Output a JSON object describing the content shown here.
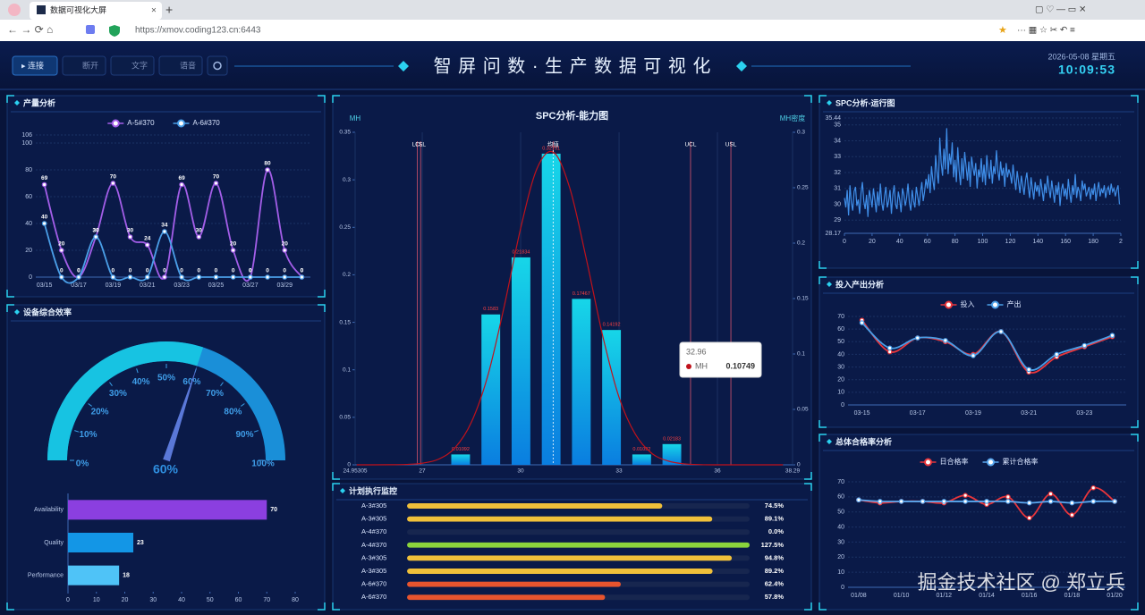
{
  "browser": {
    "tab_title": "数据可视化大屏",
    "url": "https://xmov.coding123.cn:6443"
  },
  "header": {
    "buttons": [
      "连接",
      "断开",
      "文字",
      "语音"
    ],
    "title": "智 屏 问 数 · 生 产 数 据 可 视 化",
    "date": "2026-05-08 星期五",
    "time": "10:09:53"
  },
  "watermark": "掘金技术社区 @ 郑立兵",
  "chart_data": [
    {
      "type": "line",
      "title": "产量分析",
      "smooth": true,
      "markers": true,
      "point_labels": true,
      "legend": true,
      "categories": [
        "03/15",
        null,
        "03/17",
        null,
        "03/19",
        null,
        "03/21",
        null,
        "03/23",
        null,
        "03/25",
        null,
        "03/27",
        null,
        "03/29",
        null
      ],
      "series": [
        {
          "name": "A-5#370",
          "color": "#a35ee8",
          "values": [
            69,
            20,
            0,
            30,
            70,
            30,
            24,
            0,
            69,
            30,
            70,
            20,
            0,
            80,
            20,
            0
          ]
        },
        {
          "name": "A-6#370",
          "color": "#4a9fe8",
          "values": [
            40,
            0,
            0,
            30,
            0,
            0,
            0,
            34,
            0,
            0,
            0,
            0,
            0,
            0,
            0,
            0
          ]
        }
      ],
      "ylim": [
        0,
        106
      ],
      "yticks": [
        0,
        20,
        40,
        60,
        80,
        100,
        106
      ]
    },
    {
      "type": "gauge",
      "title": "设备综合效率",
      "value": 60,
      "value_label": "60%",
      "ticks": [
        {
          "value": 0,
          "label": "0%"
        },
        {
          "value": 10,
          "label": "10%"
        },
        {
          "value": 20,
          "label": "20%"
        },
        {
          "value": 30,
          "label": "30%"
        },
        {
          "value": 40,
          "label": "40%"
        },
        {
          "value": 50,
          "label": "50%"
        },
        {
          "value": 60,
          "label": "60%"
        },
        {
          "value": 70,
          "label": "70%"
        },
        {
          "value": 80,
          "label": "80%"
        },
        {
          "value": 90,
          "label": "90%"
        },
        {
          "value": 100,
          "label": "100%"
        }
      ]
    },
    {
      "type": "hbar",
      "categories": [
        "Availability",
        "Quality",
        "Performance"
      ],
      "values": [
        70,
        23,
        18
      ],
      "colors": [
        "#8b3fe0",
        "#1396e6",
        "#4fc3f7"
      ],
      "xlim": [
        0,
        80
      ],
      "xticks": [
        0,
        10,
        20,
        30,
        40,
        50,
        60,
        70,
        80
      ]
    },
    {
      "type": "histogram",
      "title": "SPC分析-能力图",
      "y_label": "MH",
      "y2_label": "MH密度",
      "bins": [
        27.71,
        28.63,
        29.55,
        30.47,
        31.39,
        32.31,
        33.23,
        34.15,
        35.07
      ],
      "values": [
        0.01092,
        0.1583,
        0.21834,
        0.32751,
        0.17467,
        0.14192,
        0.01092,
        0.02183
      ],
      "color": "#12c6e4",
      "density": {
        "color": "#c0121b",
        "x": [
          25,
          25.5,
          26,
          26.5,
          27,
          27.5,
          28,
          28.5,
          29,
          29.5,
          30,
          30.5,
          31,
          31.5,
          32,
          32.5,
          33,
          33.5,
          34,
          34.5,
          35,
          35.5,
          36,
          36.5,
          37,
          37.5,
          38
        ],
        "values": [
          0,
          0,
          0.0001,
          0.0004,
          0.0017,
          0.006,
          0.018,
          0.045,
          0.094,
          0.167,
          0.249,
          0.312,
          0.329,
          0.291,
          0.217,
          0.136,
          0.071,
          0.032,
          0.012,
          0.004,
          0.001,
          0.0002,
          0,
          0,
          0,
          0,
          0
        ]
      },
      "reference_lines": [
        {
          "label": "LCL",
          "value": 26.85
        },
        {
          "label": "LSL",
          "value": 26.95
        },
        {
          "label": "均值",
          "value": 30.99
        },
        {
          "label": "UCL",
          "value": 35.18
        },
        {
          "label": "USL",
          "value": 36.41
        }
      ],
      "tooltip": {
        "x_label": "32.96",
        "series": "MH",
        "value": 0.10749
      },
      "xlim": [
        24.95305,
        38.29
      ],
      "xticks": [
        24.95305,
        27,
        30,
        33,
        36,
        38.29
      ],
      "ylim": [
        0,
        0.35
      ],
      "yticks": [
        0,
        0.05,
        0.1,
        0.15,
        0.2,
        0.25,
        0.3,
        0.35
      ],
      "y2lim": [
        0,
        0.3
      ],
      "y2ticks": [
        0,
        0.05,
        0.1,
        0.15,
        0.2,
        0.25,
        0.3
      ]
    },
    {
      "type": "progress",
      "title": "计划执行监控",
      "categories": [
        "A-3#305",
        "A-3#305",
        "A-4#370",
        "A-4#370",
        "A-3#305",
        "A-3#305",
        "A-6#370",
        "A-6#370"
      ],
      "values": [
        74.5,
        89.1,
        0,
        127.5,
        94.8,
        89.2,
        62.4,
        57.8
      ],
      "value_labels": [
        "74.5%",
        "89.1%",
        "0.0%",
        "127.5%",
        "94.8%",
        "89.2%",
        "62.4%",
        "57.8%"
      ],
      "colors": [
        "#f0c03a",
        "#f0c03a",
        "#f0c03a",
        "#8bd43c",
        "#f0c03a",
        "#f0c03a",
        "#e8542e",
        "#e8542e"
      ],
      "xlim": [
        0,
        100
      ]
    },
    {
      "type": "line",
      "title": "SPC分析-运行图",
      "smooth": false,
      "x": [
        0,
        1,
        2,
        3,
        4,
        5,
        6,
        7,
        8,
        9,
        10,
        11,
        12,
        13,
        14,
        15,
        16,
        17,
        18,
        19,
        20,
        21,
        22,
        23,
        24,
        25,
        26,
        27,
        28,
        29,
        30,
        31,
        32,
        33,
        34,
        35,
        36,
        37,
        38,
        39,
        40,
        41,
        42,
        43,
        44,
        45,
        46,
        47,
        48,
        49,
        50,
        51,
        52,
        53,
        54,
        55,
        56,
        57,
        58,
        59,
        60,
        61,
        62,
        63,
        64,
        65,
        66,
        67,
        68,
        69,
        70,
        71,
        72,
        73,
        74,
        75,
        76,
        77,
        78,
        79,
        80,
        81,
        82,
        83,
        84,
        85,
        86,
        87,
        88,
        89,
        90,
        91,
        92,
        93,
        94,
        95,
        96,
        97,
        98,
        99,
        100,
        101,
        102,
        103,
        104,
        105,
        106,
        107,
        108,
        109,
        110,
        111,
        112,
        113,
        114,
        115,
        116,
        117,
        118,
        119,
        120,
        121,
        122,
        123,
        124,
        125,
        126,
        127,
        128,
        129,
        130,
        131,
        132,
        133,
        134,
        135,
        136,
        137,
        138,
        139,
        140,
        141,
        142,
        143,
        144,
        145,
        146,
        147,
        148,
        149,
        150,
        151,
        152,
        153,
        154,
        155,
        156,
        157,
        158,
        159,
        160,
        161,
        162,
        163,
        164,
        165,
        166,
        167,
        168,
        169,
        170,
        171,
        172,
        173,
        174,
        175,
        176,
        177,
        178,
        179,
        180,
        181,
        182,
        183,
        184,
        185,
        186,
        187,
        188,
        189,
        190,
        191,
        192,
        193,
        194,
        195,
        196,
        197,
        198,
        199
      ],
      "series": [
        {
          "color": "#3f8ee8",
          "values": [
            30.4,
            29.8,
            30.9,
            29.3,
            31.2,
            30.1,
            29.6,
            30.8,
            31.1,
            29.9,
            30.3,
            29.4,
            30.7,
            31.4,
            30.2,
            29.7,
            30.6,
            29.2,
            30.9,
            30.4,
            29.8,
            31.0,
            30.3,
            29.5,
            30.8,
            29.9,
            31.3,
            30.1,
            29.6,
            30.5,
            31.1,
            29.8,
            30.2,
            30.9,
            29.4,
            30.6,
            31.2,
            30.0,
            29.7,
            30.8,
            30.3,
            29.5,
            31.0,
            30.6,
            29.9,
            30.4,
            31.3,
            30.1,
            29.6,
            30.9,
            30.2,
            29.8,
            31.1,
            30.5,
            29.9,
            30.7,
            31.4,
            30.2,
            30.8,
            31.6,
            31.0,
            31.9,
            30.7,
            32.4,
            31.5,
            30.9,
            33.1,
            32.0,
            31.3,
            34.2,
            32.6,
            31.8,
            33.5,
            32.2,
            34.8,
            31.9,
            33.2,
            32.5,
            33.9,
            31.7,
            32.8,
            31.4,
            33.6,
            32.1,
            31.2,
            32.9,
            31.6,
            33.3,
            32.4,
            31.5,
            32.7,
            31.1,
            33.0,
            32.3,
            31.8,
            32.6,
            31.0,
            32.2,
            31.7,
            32.9,
            31.4,
            32.5,
            31.2,
            33.1,
            32.0,
            31.6,
            32.8,
            31.3,
            32.4,
            31.9,
            33.4,
            32.1,
            31.5,
            32.7,
            31.8,
            32.3,
            31.1,
            32.6,
            31.7,
            32.2,
            31.9,
            31.3,
            32.5,
            31.6,
            30.9,
            32.1,
            31.4,
            30.7,
            31.8,
            31.2,
            30.6,
            31.5,
            32.0,
            31.1,
            30.4,
            31.7,
            31.0,
            30.3,
            31.4,
            30.8,
            31.2,
            30.5,
            31.6,
            30.9,
            30.2,
            31.3,
            30.7,
            31.8,
            31.0,
            30.4,
            31.5,
            30.8,
            30.1,
            31.2,
            30.6,
            31.4,
            29.9,
            30.9,
            31.3,
            30.5,
            31.0,
            30.3,
            31.6,
            30.7,
            30.1,
            31.2,
            30.6,
            31.9,
            30.4,
            31.1,
            30.8,
            30.2,
            31.5,
            30.9,
            31.3,
            30.5,
            30.8,
            31.1,
            30.3,
            31.0,
            30.6,
            31.3,
            30.2,
            30.9,
            31.4,
            30.5,
            31.0,
            30.7,
            31.2,
            30.4,
            30.9,
            31.1,
            30.6,
            31.3,
            30.8,
            31.0,
            30.5,
            30.9,
            31.2,
            30.0
          ]
        }
      ],
      "xlim": [
        0,
        200
      ],
      "xticks": [
        0,
        20,
        40,
        60,
        80,
        100,
        120,
        140,
        160,
        180,
        {
          "value": 200,
          "label": "2"
        }
      ],
      "ylim": [
        28.17,
        35.44
      ],
      "yticks": [
        28.17,
        29,
        30,
        31,
        32,
        33,
        34,
        35,
        35.44
      ]
    },
    {
      "type": "line",
      "title": "投入产出分析",
      "smooth": true,
      "markers": true,
      "legend": true,
      "categories": [
        "03-15",
        null,
        "03-17",
        null,
        "03-19",
        null,
        "03-21",
        null,
        "03-23",
        null
      ],
      "series": [
        {
          "name": "投入",
          "color": "#e8353b",
          "values": [
            67,
            42,
            53,
            50,
            40,
            58,
            26,
            38,
            46,
            54
          ]
        },
        {
          "name": "产出",
          "color": "#4a9fe8",
          "values": [
            65,
            45,
            53,
            51,
            39,
            58,
            28,
            40,
            47,
            55
          ]
        }
      ],
      "ylim": [
        0,
        70
      ],
      "yticks": [
        0,
        10,
        20,
        30,
        40,
        50,
        60,
        70
      ]
    },
    {
      "type": "line",
      "title": "总体合格率分析",
      "smooth": true,
      "markers": true,
      "legend": true,
      "categories": [
        "01/08",
        null,
        "01/10",
        null,
        "01/12",
        null,
        "01/14",
        null,
        "01/16",
        null,
        "01/18",
        null,
        "01/20"
      ],
      "series": [
        {
          "name": "日合格率",
          "color": "#e8353b",
          "values": [
            58,
            56,
            57,
            57,
            56,
            61,
            55,
            60,
            46,
            62,
            48,
            66,
            57
          ]
        },
        {
          "name": "累计合格率",
          "color": "#5aa8ef",
          "values": [
            58,
            57,
            57,
            57,
            57,
            57,
            57,
            57,
            56,
            57,
            56,
            57,
            57
          ]
        }
      ],
      "ylim": [
        0,
        70
      ],
      "yticks": [
        0,
        10,
        20,
        30,
        40,
        50,
        60,
        70
      ]
    }
  ]
}
